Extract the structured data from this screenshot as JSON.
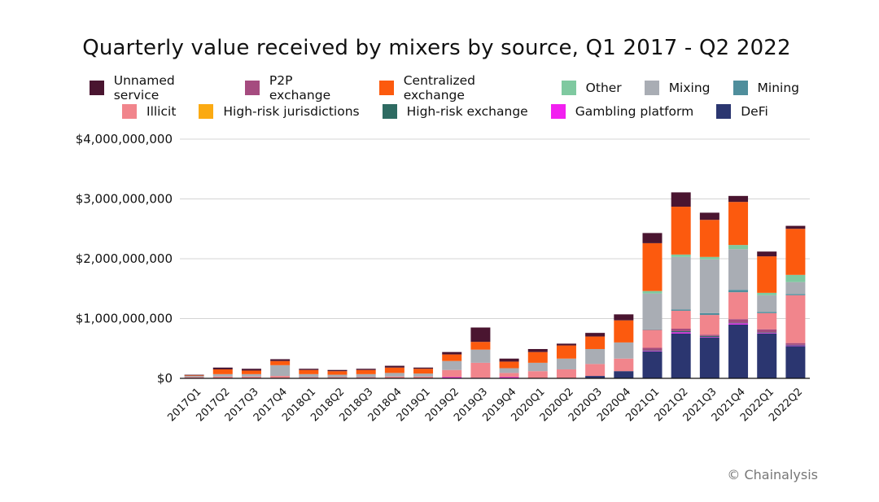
{
  "chart_data": {
    "type": "bar",
    "stacked": true,
    "title": "Quarterly value received by mixers by source, Q1 2017 - Q2 2022",
    "xlabel": "",
    "ylabel": "",
    "ylim": [
      0,
      4000000000
    ],
    "yticks": [
      "$0",
      "$1,000,000,000",
      "$2,000,000,000",
      "$3,000,000,000",
      "$4,000,000,000"
    ],
    "grid": true,
    "legend_position": "top",
    "categories": [
      "2017Q1",
      "2017Q2",
      "2017Q3",
      "2017Q4",
      "2018Q1",
      "2018Q2",
      "2018Q3",
      "2018Q4",
      "2019Q1",
      "2019Q2",
      "2019Q3",
      "2019Q4",
      "2020Q1",
      "2020Q2",
      "2020Q3",
      "2020Q4",
      "2021Q1",
      "2021Q2",
      "2021Q3",
      "2021Q4",
      "2022Q1",
      "2022Q2"
    ],
    "legend": [
      {
        "name": "Unnamed service",
        "color": "#4a1530"
      },
      {
        "name": "P2P exchange",
        "color": "#a54b7f"
      },
      {
        "name": "Centralized exchange",
        "color": "#fc5a0e"
      },
      {
        "name": "Other",
        "color": "#7fc9a0"
      },
      {
        "name": "Mixing",
        "color": "#a9adb4"
      },
      {
        "name": "Mining",
        "color": "#4f8e9c"
      },
      {
        "name": "Illicit",
        "color": "#f1858c"
      },
      {
        "name": "High-risk jurisdictions",
        "color": "#fbaa12"
      },
      {
        "name": "High-risk exchange",
        "color": "#2e6b62"
      },
      {
        "name": "Gambling platform",
        "color": "#f220f0"
      },
      {
        "name": "DeFi",
        "color": "#2b3670"
      }
    ],
    "series": [
      {
        "name": "DeFi",
        "color": "#2b3670",
        "values": [
          0,
          0,
          0,
          0,
          0,
          0,
          0,
          0,
          0,
          0,
          0,
          0,
          0,
          0,
          40000000,
          120000000,
          450000000,
          750000000,
          680000000,
          900000000,
          750000000,
          540000000
        ]
      },
      {
        "name": "Gambling platform",
        "color": "#f220f0",
        "values": [
          0,
          0,
          0,
          0,
          0,
          0,
          0,
          0,
          0,
          20000000,
          10000000,
          20000000,
          0,
          0,
          0,
          0,
          10000000,
          20000000,
          10000000,
          20000000,
          10000000,
          10000000
        ]
      },
      {
        "name": "High-risk exchange",
        "color": "#2e6b62",
        "values": [
          0,
          0,
          0,
          0,
          0,
          0,
          0,
          0,
          0,
          0,
          0,
          0,
          0,
          0,
          0,
          0,
          10000000,
          20000000,
          20000000,
          10000000,
          10000000,
          10000000
        ]
      },
      {
        "name": "High-risk jurisdictions",
        "color": "#fbaa12",
        "values": [
          0,
          0,
          0,
          0,
          0,
          0,
          0,
          0,
          0,
          0,
          0,
          0,
          0,
          0,
          0,
          0,
          0,
          0,
          0,
          0,
          0,
          0
        ]
      },
      {
        "name": "P2P exchange",
        "color": "#a54b7f",
        "values": [
          0,
          0,
          0,
          0,
          0,
          0,
          0,
          0,
          0,
          0,
          0,
          0,
          0,
          0,
          0,
          0,
          40000000,
          40000000,
          20000000,
          60000000,
          50000000,
          30000000
        ]
      },
      {
        "name": "Illicit",
        "color": "#f1858c",
        "values": [
          20000000,
          30000000,
          30000000,
          40000000,
          20000000,
          20000000,
          20000000,
          30000000,
          30000000,
          120000000,
          250000000,
          70000000,
          120000000,
          150000000,
          200000000,
          210000000,
          300000000,
          300000000,
          330000000,
          450000000,
          270000000,
          800000000
        ]
      },
      {
        "name": "Mining",
        "color": "#4f8e9c",
        "values": [
          0,
          0,
          0,
          0,
          0,
          0,
          0,
          0,
          0,
          0,
          0,
          0,
          0,
          0,
          0,
          0,
          10000000,
          20000000,
          30000000,
          40000000,
          20000000,
          20000000
        ]
      },
      {
        "name": "Mixing",
        "color": "#a9adb4",
        "values": [
          20000000,
          40000000,
          40000000,
          180000000,
          50000000,
          40000000,
          50000000,
          60000000,
          50000000,
          150000000,
          220000000,
          80000000,
          140000000,
          180000000,
          250000000,
          270000000,
          600000000,
          880000000,
          900000000,
          680000000,
          280000000,
          200000000
        ]
      },
      {
        "name": "Other",
        "color": "#7fc9a0",
        "values": [
          0,
          0,
          0,
          0,
          0,
          0,
          0,
          0,
          0,
          0,
          0,
          0,
          0,
          0,
          0,
          0,
          40000000,
          40000000,
          40000000,
          70000000,
          40000000,
          120000000
        ]
      },
      {
        "name": "Centralized exchange",
        "color": "#fc5a0e",
        "values": [
          10000000,
          80000000,
          60000000,
          70000000,
          70000000,
          60000000,
          70000000,
          90000000,
          80000000,
          110000000,
          130000000,
          110000000,
          180000000,
          220000000,
          210000000,
          370000000,
          800000000,
          800000000,
          620000000,
          720000000,
          610000000,
          770000000
        ]
      },
      {
        "name": "Unnamed service",
        "color": "#4a1530",
        "values": [
          10000000,
          30000000,
          30000000,
          30000000,
          20000000,
          20000000,
          20000000,
          30000000,
          20000000,
          40000000,
          240000000,
          50000000,
          50000000,
          30000000,
          60000000,
          100000000,
          170000000,
          240000000,
          120000000,
          100000000,
          80000000,
          50000000
        ]
      }
    ]
  },
  "credit": "© Chainalysis"
}
